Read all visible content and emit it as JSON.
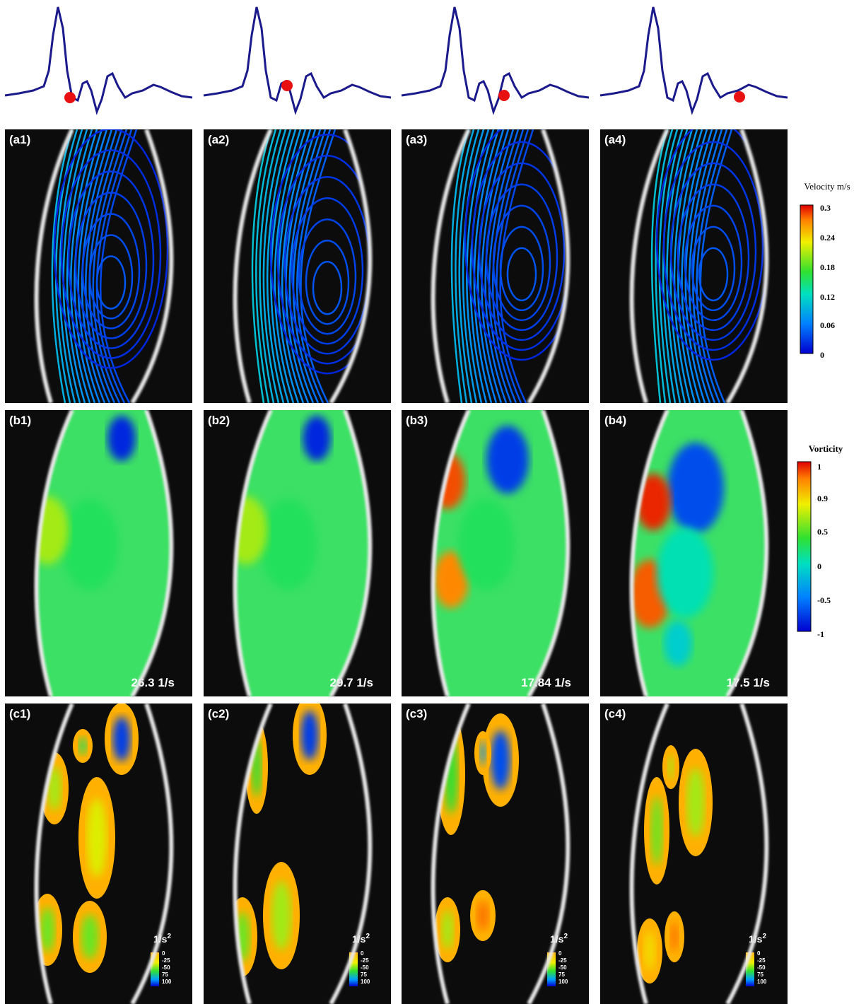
{
  "rows": [
    {
      "labels": [
        "(a1)",
        "(a2)",
        "(a3)",
        "(a4)"
      ]
    },
    {
      "labels": [
        "(b1)",
        "(b2)",
        "(b3)",
        "(b4)"
      ],
      "annotations": [
        "26.3 1/s",
        "29.7 1/s",
        "17.84 1/s",
        "17.5 1/s"
      ]
    },
    {
      "labels": [
        "(c1)",
        "(c2)",
        "(c3)",
        "(c4)"
      ]
    }
  ],
  "velocity_colorbar": {
    "title": "Velocity m/s",
    "ticks": [
      "0.3",
      "0.24",
      "0.18",
      "0.12",
      "0.06",
      "0"
    ]
  },
  "vorticity_colorbar": {
    "title": "Vorticity",
    "ticks": [
      "1",
      "0.9",
      "0.5",
      "0",
      "-0.5",
      "-1"
    ]
  },
  "acceleration_colorbar": {
    "unit": "1/s",
    "unit_sup": "2",
    "ticks": [
      "0",
      "-25",
      "-50",
      "75",
      "100"
    ]
  }
}
